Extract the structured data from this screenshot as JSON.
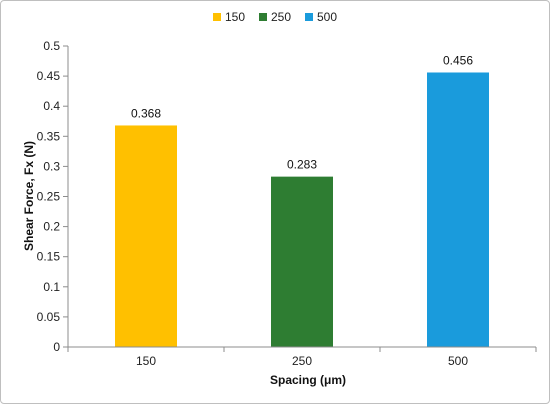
{
  "chart_data": {
    "type": "bar",
    "categories": [
      "150",
      "250",
      "500"
    ],
    "values": [
      0.368,
      0.283,
      0.456
    ],
    "data_labels": [
      "0.368",
      "0.283",
      "0.456"
    ],
    "colors": [
      "#FFC000",
      "#2E7D32",
      "#1A9BDC"
    ],
    "legend": [
      "150",
      "250",
      "500"
    ],
    "legend_position": "top",
    "xlabel": "Spacing (μm)",
    "ylabel": "Shear Force, Fx (N)",
    "ylim": [
      0,
      0.5
    ],
    "yticks": [
      "0",
      "0.05",
      "0.1",
      "0.15",
      "0.2",
      "0.25",
      "0.3",
      "0.35",
      "0.4",
      "0.45",
      "0.5"
    ],
    "ytick_values": [
      0,
      0.05,
      0.1,
      0.15,
      0.2,
      0.25,
      0.3,
      0.35,
      0.4,
      0.45,
      0.5
    ],
    "grid": false
  }
}
